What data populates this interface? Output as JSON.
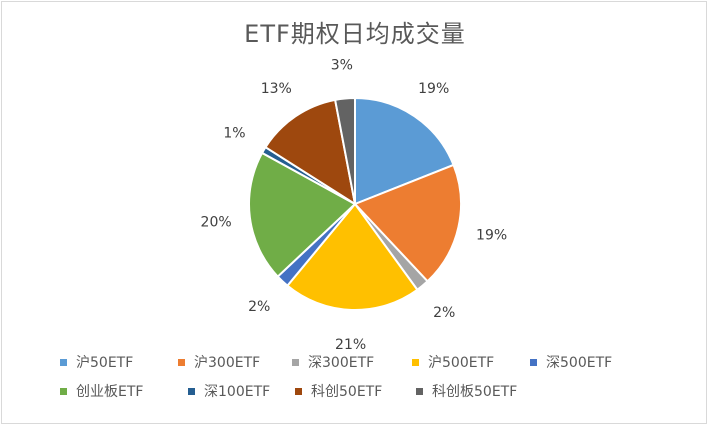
{
  "chart_data": {
    "type": "pie",
    "title": "ETF期权日均成交量",
    "categories": [
      "沪50ETF",
      "沪300ETF",
      "深300ETF",
      "沪500ETF",
      "深500ETF",
      "创业板ETF",
      "深100ETF",
      "科创50ETF",
      "科创板50ETF"
    ],
    "values": [
      19,
      19,
      2,
      21,
      2,
      20,
      1,
      13,
      3
    ],
    "labels": [
      "19%",
      "19%",
      "2%",
      "21%",
      "2%",
      "20%",
      "1%",
      "13%",
      "3%"
    ],
    "colors": [
      "#5b9bd5",
      "#ed7d31",
      "#a5a5a5",
      "#ffc000",
      "#4472c4",
      "#70ad47",
      "#255e91",
      "#9e480e",
      "#636363"
    ],
    "legend_position": "bottom"
  }
}
